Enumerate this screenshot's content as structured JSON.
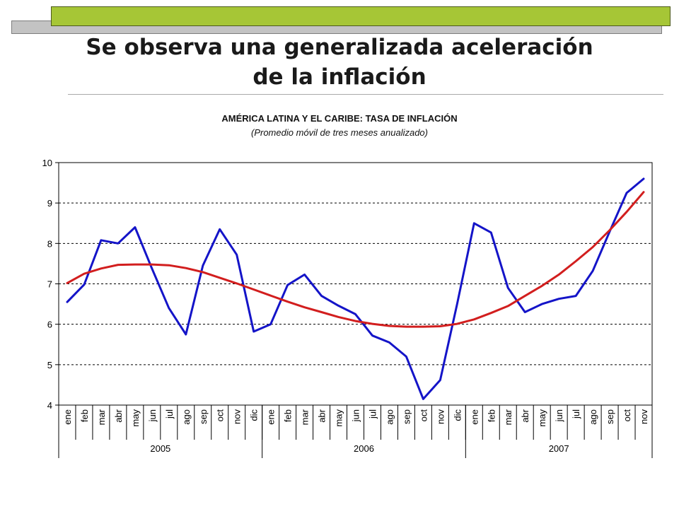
{
  "slide": {
    "title_line1": "Se observa una generalizada aceleración",
    "title_line2": "de la inflación"
  },
  "colors": {
    "accent_green": "#a6c636",
    "deco_gray": "#c3c3c3",
    "series_blue": "#1414c8",
    "series_red": "#d21e1e"
  },
  "chart_data": {
    "type": "line",
    "title": "AMÉRICA LATINA Y EL CARIBE: TASA DE INFLACIÓN",
    "subtitle": "(Promedio móvil de tres meses anualizado)",
    "xlabel": "",
    "ylabel": "",
    "ylim": [
      4,
      10
    ],
    "yticks": [
      4,
      5,
      6,
      7,
      8,
      9,
      10
    ],
    "grid": "horizontal dashed",
    "legend": "none",
    "categories": [
      "ene",
      "feb",
      "mar",
      "abr",
      "may",
      "jun",
      "jul",
      "ago",
      "sep",
      "oct",
      "nov",
      "dic",
      "ene",
      "feb",
      "mar",
      "abr",
      "may",
      "jun",
      "jul",
      "ago",
      "sep",
      "oct",
      "nov",
      "dic",
      "ene",
      "feb",
      "mar",
      "abr",
      "may",
      "jun",
      "jul",
      "ago",
      "sep",
      "oct",
      "nov"
    ],
    "year_groups": [
      {
        "label": "2005",
        "count": 12
      },
      {
        "label": "2006",
        "count": 12
      },
      {
        "label": "2007",
        "count": 11
      }
    ],
    "series": [
      {
        "color": "#1414c8",
        "values": [
          6.55,
          6.98,
          8.08,
          8.0,
          8.4,
          7.38,
          6.4,
          5.75,
          7.45,
          8.35,
          7.72,
          5.82,
          6.0,
          6.97,
          7.23,
          6.7,
          6.46,
          6.25,
          5.72,
          5.55,
          5.2,
          4.15,
          4.62,
          6.5,
          8.5,
          8.27,
          6.9,
          6.3,
          6.5,
          6.63,
          6.7,
          7.32,
          8.3,
          9.25,
          9.6
        ]
      },
      {
        "color": "#d21e1e",
        "values": [
          7.02,
          7.25,
          7.38,
          7.47,
          7.48,
          7.48,
          7.46,
          7.39,
          7.29,
          7.15,
          7.01,
          6.86,
          6.71,
          6.56,
          6.42,
          6.3,
          6.18,
          6.08,
          6.01,
          5.96,
          5.94,
          5.94,
          5.95,
          6.01,
          6.12,
          6.28,
          6.45,
          6.7,
          6.95,
          7.23,
          7.56,
          7.91,
          8.33,
          8.78,
          9.27
        ]
      }
    ]
  }
}
